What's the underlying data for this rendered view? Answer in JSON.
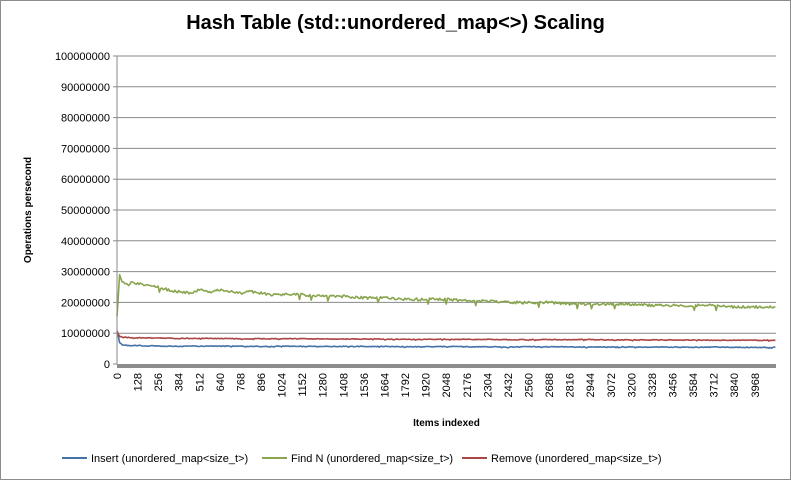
{
  "chart_data": {
    "type": "line",
    "title": "Hash Table (std::unordered_map<>) Scaling",
    "xlabel": "Items indexed",
    "ylabel": "Operations persecond",
    "xlim": [
      0,
      4100
    ],
    "ylim": [
      0,
      100000000
    ],
    "y_ticks": [
      0,
      10000000,
      20000000,
      30000000,
      40000000,
      50000000,
      60000000,
      70000000,
      80000000,
      90000000,
      100000000
    ],
    "x_tick_labels": [
      "0",
      "128",
      "256",
      "384",
      "512",
      "640",
      "768",
      "896",
      "1024",
      "1152",
      "1280",
      "1408",
      "1536",
      "1664",
      "1792",
      "1920",
      "2048",
      "2176",
      "2304",
      "2432",
      "2560",
      "2688",
      "2816",
      "2944",
      "3072",
      "3200",
      "3328",
      "3456",
      "3584",
      "3712",
      "3840",
      "3968"
    ],
    "grid": "horizontal",
    "legend_position": "bottom",
    "series": [
      {
        "name": "Insert (unordered_map<size_t>)",
        "color": "#4572A7",
        "x": [
          0,
          16,
          32,
          64,
          128,
          192,
          256,
          320,
          384,
          448,
          512,
          640,
          768,
          896,
          1024,
          1152,
          1280,
          1408,
          1536,
          1664,
          1792,
          1920,
          2048,
          2176,
          2304,
          2432,
          2560,
          2688,
          2816,
          2944,
          3072,
          3200,
          3328,
          3456,
          3584,
          3712,
          3840,
          3968,
          4096
        ],
        "values": [
          11000000,
          7000000,
          6200000,
          6000000,
          6000000,
          5900000,
          5900000,
          5800000,
          5700000,
          5800000,
          5800000,
          5800000,
          5800000,
          5700000,
          5800000,
          5700000,
          5700000,
          5700000,
          5700000,
          5700000,
          5600000,
          5600000,
          5700000,
          5600000,
          5600000,
          5500000,
          5600000,
          5600000,
          5500000,
          5500000,
          5500000,
          5500000,
          5500000,
          5500000,
          5400000,
          5500000,
          5400000,
          5400000,
          5400000
        ]
      },
      {
        "name": "Find N (unordered_map<size_t>)",
        "color": "#89A54E",
        "x": [
          0,
          16,
          32,
          48,
          64,
          96,
          128,
          192,
          256,
          320,
          384,
          448,
          512,
          576,
          640,
          704,
          768,
          832,
          896,
          960,
          1024,
          1152,
          1280,
          1408,
          1536,
          1664,
          1792,
          1920,
          2048,
          2176,
          2304,
          2432,
          2560,
          2688,
          2816,
          2944,
          3072,
          3200,
          3328,
          3456,
          3584,
          3712,
          3840,
          3968,
          4096
        ],
        "values": [
          15000000,
          29000000,
          27000000,
          26000000,
          25500000,
          26500000,
          26000000,
          25500000,
          25000000,
          24000000,
          23500000,
          23000000,
          24000000,
          23500000,
          24000000,
          23500000,
          23000000,
          23500000,
          23000000,
          22500000,
          22500000,
          22500000,
          22000000,
          22000000,
          21500000,
          21500000,
          21000000,
          21000000,
          21000000,
          20500000,
          20500000,
          20000000,
          20000000,
          20000000,
          19500000,
          19500000,
          19500000,
          19500000,
          19000000,
          19000000,
          19000000,
          19000000,
          18500000,
          18500000,
          18500000
        ]
      },
      {
        "name": "Remove (unordered_map<size_t>)",
        "color": "#AA4643",
        "x": [
          0,
          16,
          32,
          64,
          128,
          192,
          256,
          320,
          384,
          448,
          512,
          640,
          768,
          896,
          1024,
          1152,
          1280,
          1408,
          1536,
          1664,
          1792,
          1920,
          2048,
          2176,
          2304,
          2432,
          2560,
          2688,
          2816,
          2944,
          3072,
          3200,
          3328,
          3456,
          3584,
          3712,
          3840,
          3968,
          4096
        ],
        "values": [
          10500000,
          9000000,
          8700000,
          8600000,
          8500000,
          8500000,
          8400000,
          8400000,
          8300000,
          8300000,
          8300000,
          8300000,
          8200000,
          8200000,
          8200000,
          8200000,
          8100000,
          8100000,
          8100000,
          8100000,
          8000000,
          8000000,
          8000000,
          8000000,
          8000000,
          7900000,
          7900000,
          7900000,
          7900000,
          7900000,
          7800000,
          7800000,
          7800000,
          7800000,
          7800000,
          7700000,
          7700000,
          7700000,
          7700000
        ]
      }
    ]
  }
}
